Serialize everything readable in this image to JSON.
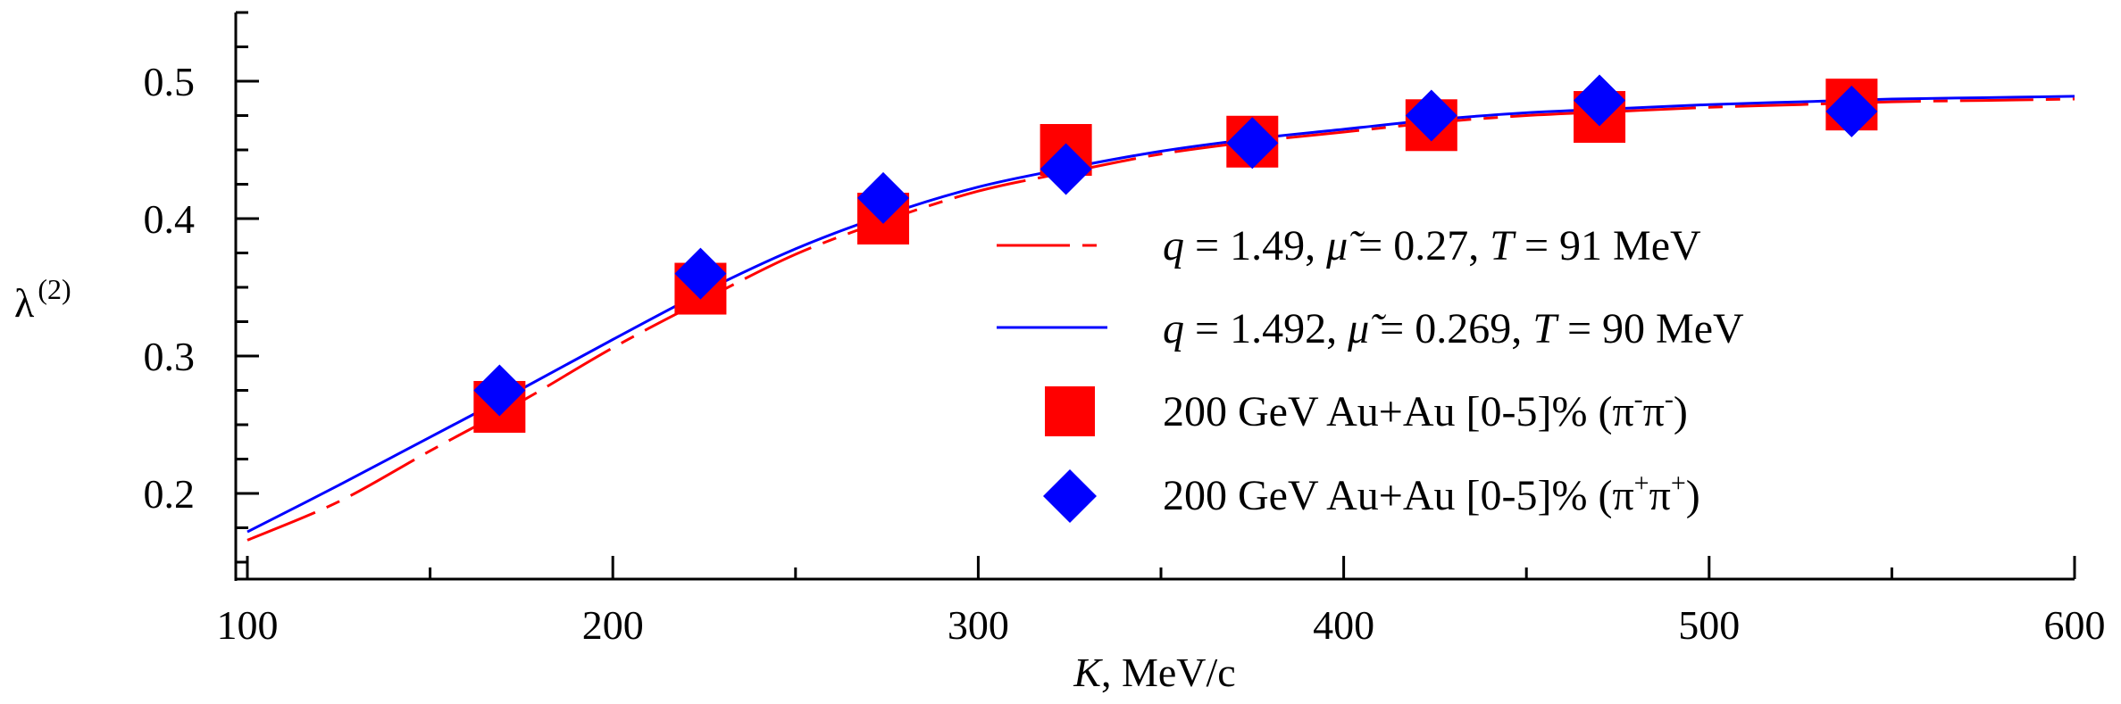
{
  "chart_data": {
    "type": "line",
    "title": "",
    "xlabel_var": "K",
    "xlabel_unit": "MeV/c",
    "ylabel_base": "λ",
    "ylabel_sup": "(2)",
    "xlim": [
      100,
      600
    ],
    "ylim": [
      0.15,
      0.55
    ],
    "x_ticks": [
      100,
      200,
      300,
      400,
      500,
      600
    ],
    "x_tick_labels": [
      "100",
      "200",
      "300",
      "400",
      "500",
      "600"
    ],
    "y_ticks": [
      0.2,
      0.3,
      0.4,
      0.5
    ],
    "y_tick_labels": [
      "0.2",
      "0.3",
      "0.4",
      "0.5"
    ],
    "grid": false,
    "legend_position": "bottom-right",
    "colors": {
      "red": "#ff0000",
      "blue": "#0000ff"
    },
    "series": [
      {
        "name": "q = 1.49, μ̃ = 0.27, T = 91 MeV",
        "legend": {
          "q": "q",
          "q_val": " = 1.49, ",
          "mu": "μ̃",
          "mu_val": " = 0.27,  ",
          "T": "T",
          "T_val": " = 91 MeV"
        },
        "kind": "line",
        "style": "dashed",
        "color": "#ff0000",
        "x": [
          100,
          125,
          150,
          175,
          200,
          225,
          250,
          275,
          300,
          325,
          350,
          375,
          400,
          425,
          450,
          475,
          500,
          525,
          550,
          575,
          600
        ],
        "y": [
          0.166,
          0.194,
          0.231,
          0.267,
          0.306,
          0.341,
          0.374,
          0.399,
          0.42,
          0.434,
          0.447,
          0.456,
          0.463,
          0.47,
          0.475,
          0.478,
          0.481,
          0.483,
          0.485,
          0.486,
          0.487
        ]
      },
      {
        "name": "q = 1.492, μ̃ = 0.269, T = 90 MeV",
        "legend": {
          "q": "q",
          "q_val": " = 1.492, ",
          "mu": "μ̃",
          "mu_val": " = 0.269,  ",
          "T": "T",
          "T_val": " = 90 MeV"
        },
        "kind": "line",
        "style": "solid",
        "color": "#0000ff",
        "x": [
          100,
          125,
          150,
          175,
          200,
          225,
          250,
          275,
          300,
          325,
          350,
          375,
          400,
          425,
          450,
          475,
          500,
          525,
          550,
          575,
          600
        ],
        "y": [
          0.172,
          0.206,
          0.241,
          0.276,
          0.312,
          0.347,
          0.378,
          0.403,
          0.423,
          0.437,
          0.449,
          0.458,
          0.465,
          0.472,
          0.477,
          0.48,
          0.483,
          0.485,
          0.487,
          0.488,
          0.489
        ]
      },
      {
        "name": "200 GeV Au+Au [0-5]% (π⁻π⁻)",
        "legend_text": "200 GeV Au+Au [0-5]% (π",
        "legend_sup1": "-",
        "legend_mid": "π",
        "legend_sup2": "-",
        "legend_end": ")",
        "kind": "scatter",
        "marker": "square",
        "color": "#ff0000",
        "x": [
          169,
          224,
          274,
          324,
          375,
          424,
          470,
          539
        ],
        "y": [
          0.263,
          0.349,
          0.4,
          0.45,
          0.456,
          0.468,
          0.474,
          0.483
        ]
      },
      {
        "name": "200 GeV Au+Au [0-5]% (π⁺π⁺)",
        "legend_text": "200 GeV Au+Au [0-5]% (π",
        "legend_sup1": "+",
        "legend_mid": "π",
        "legend_sup2": "+",
        "legend_end": ")",
        "kind": "scatter",
        "marker": "diamond",
        "color": "#0000ff",
        "x": [
          169,
          224,
          274,
          324,
          375,
          424,
          470,
          539
        ],
        "y": [
          0.275,
          0.36,
          0.415,
          0.436,
          0.455,
          0.475,
          0.486,
          0.478
        ]
      }
    ]
  }
}
